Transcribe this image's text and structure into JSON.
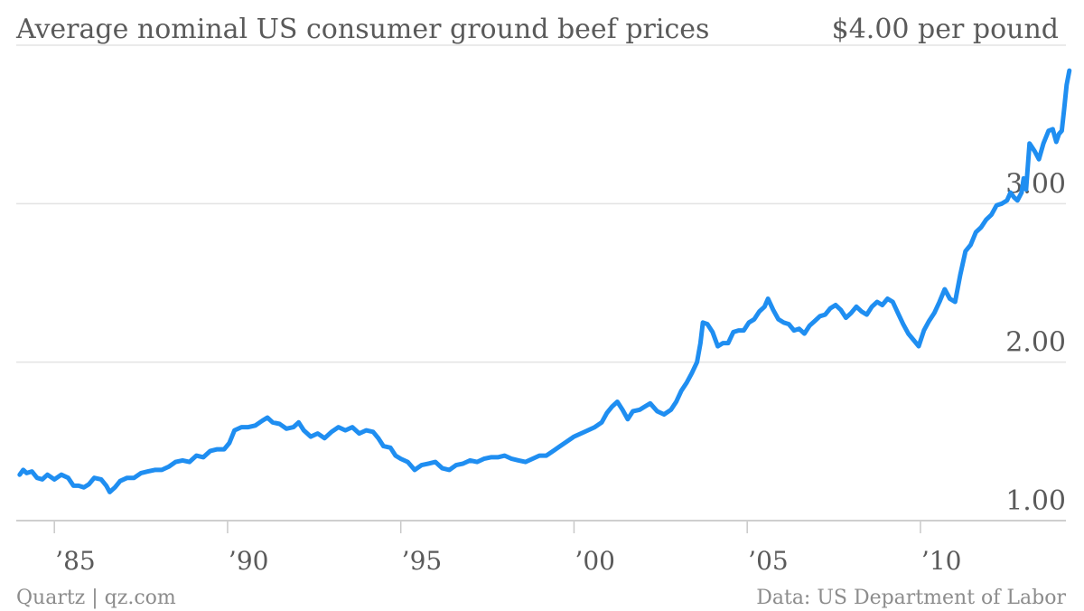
{
  "chart_data": {
    "type": "line",
    "title": "Average nominal US consumer ground beef prices",
    "unit_label": "$4.00 per pound",
    "xlabel": "",
    "ylabel": "",
    "xlim": [
      1983.9,
      2014.2
    ],
    "ylim": [
      0.95,
      4.0
    ],
    "grid": true,
    "line_color": "#1f8ef1",
    "y_ticks": [
      {
        "value": 1.0,
        "label": "1.00"
      },
      {
        "value": 2.0,
        "label": "2.00"
      },
      {
        "value": 3.0,
        "label": "3.00"
      },
      {
        "value": 4.0,
        "label": "$4.00 per pound"
      }
    ],
    "x_ticks": [
      {
        "value": 1985,
        "label": "’85"
      },
      {
        "value": 1990,
        "label": "’90"
      },
      {
        "value": 1995,
        "label": "’95"
      },
      {
        "value": 2000,
        "label": "’00"
      },
      {
        "value": 2005,
        "label": "’05"
      },
      {
        "value": 2010,
        "label": "’10"
      }
    ],
    "series": [
      {
        "values": [
          [
            1984.0,
            1.29
          ],
          [
            1984.1,
            1.32
          ],
          [
            1984.2,
            1.3
          ],
          [
            1984.35,
            1.31
          ],
          [
            1984.5,
            1.27
          ],
          [
            1984.65,
            1.26
          ],
          [
            1984.8,
            1.29
          ],
          [
            1985.0,
            1.26
          ],
          [
            1985.2,
            1.29
          ],
          [
            1985.4,
            1.27
          ],
          [
            1985.55,
            1.22
          ],
          [
            1985.7,
            1.22
          ],
          [
            1985.85,
            1.21
          ],
          [
            1986.0,
            1.23
          ],
          [
            1986.15,
            1.27
          ],
          [
            1986.35,
            1.26
          ],
          [
            1986.5,
            1.22
          ],
          [
            1986.6,
            1.18
          ],
          [
            1986.75,
            1.21
          ],
          [
            1986.9,
            1.25
          ],
          [
            1987.1,
            1.27
          ],
          [
            1987.3,
            1.27
          ],
          [
            1987.5,
            1.3
          ],
          [
            1987.7,
            1.31
          ],
          [
            1987.9,
            1.32
          ],
          [
            1988.1,
            1.32
          ],
          [
            1988.3,
            1.34
          ],
          [
            1988.5,
            1.37
          ],
          [
            1988.7,
            1.38
          ],
          [
            1988.9,
            1.37
          ],
          [
            1989.1,
            1.41
          ],
          [
            1989.3,
            1.4
          ],
          [
            1989.5,
            1.44
          ],
          [
            1989.7,
            1.45
          ],
          [
            1989.9,
            1.45
          ],
          [
            1990.05,
            1.49
          ],
          [
            1990.2,
            1.57
          ],
          [
            1990.4,
            1.59
          ],
          [
            1990.6,
            1.59
          ],
          [
            1990.8,
            1.6
          ],
          [
            1991.0,
            1.63
          ],
          [
            1991.15,
            1.65
          ],
          [
            1991.3,
            1.62
          ],
          [
            1991.5,
            1.61
          ],
          [
            1991.7,
            1.58
          ],
          [
            1991.9,
            1.59
          ],
          [
            1992.05,
            1.62
          ],
          [
            1992.2,
            1.57
          ],
          [
            1992.4,
            1.53
          ],
          [
            1992.6,
            1.55
          ],
          [
            1992.8,
            1.52
          ],
          [
            1993.0,
            1.56
          ],
          [
            1993.2,
            1.59
          ],
          [
            1993.4,
            1.57
          ],
          [
            1993.6,
            1.59
          ],
          [
            1993.8,
            1.55
          ],
          [
            1994.0,
            1.57
          ],
          [
            1994.2,
            1.56
          ],
          [
            1994.35,
            1.52
          ],
          [
            1994.5,
            1.47
          ],
          [
            1994.7,
            1.46
          ],
          [
            1994.85,
            1.41
          ],
          [
            1995.0,
            1.39
          ],
          [
            1995.2,
            1.37
          ],
          [
            1995.4,
            1.32
          ],
          [
            1995.6,
            1.35
          ],
          [
            1995.8,
            1.36
          ],
          [
            1996.0,
            1.37
          ],
          [
            1996.2,
            1.33
          ],
          [
            1996.4,
            1.32
          ],
          [
            1996.6,
            1.35
          ],
          [
            1996.8,
            1.36
          ],
          [
            1997.0,
            1.38
          ],
          [
            1997.2,
            1.37
          ],
          [
            1997.4,
            1.39
          ],
          [
            1997.6,
            1.4
          ],
          [
            1997.8,
            1.4
          ],
          [
            1998.0,
            1.41
          ],
          [
            1998.2,
            1.39
          ],
          [
            1998.4,
            1.38
          ],
          [
            1998.6,
            1.37
          ],
          [
            1998.8,
            1.39
          ],
          [
            1999.0,
            1.41
          ],
          [
            1999.2,
            1.41
          ],
          [
            1999.4,
            1.44
          ],
          [
            1999.6,
            1.47
          ],
          [
            1999.8,
            1.5
          ],
          [
            2000.0,
            1.53
          ],
          [
            2000.2,
            1.55
          ],
          [
            2000.4,
            1.57
          ],
          [
            2000.6,
            1.59
          ],
          [
            2000.8,
            1.62
          ],
          [
            2000.95,
            1.68
          ],
          [
            2001.1,
            1.72
          ],
          [
            2001.25,
            1.75
          ],
          [
            2001.4,
            1.7
          ],
          [
            2001.55,
            1.64
          ],
          [
            2001.7,
            1.69
          ],
          [
            2001.9,
            1.7
          ],
          [
            2002.05,
            1.72
          ],
          [
            2002.2,
            1.74
          ],
          [
            2002.4,
            1.69
          ],
          [
            2002.6,
            1.67
          ],
          [
            2002.8,
            1.7
          ],
          [
            2002.95,
            1.75
          ],
          [
            2003.1,
            1.82
          ],
          [
            2003.25,
            1.87
          ],
          [
            2003.4,
            1.93
          ],
          [
            2003.55,
            2.0
          ],
          [
            2003.65,
            2.12
          ],
          [
            2003.72,
            2.25
          ],
          [
            2003.85,
            2.24
          ],
          [
            2004.0,
            2.19
          ],
          [
            2004.15,
            2.1
          ],
          [
            2004.3,
            2.12
          ],
          [
            2004.45,
            2.12
          ],
          [
            2004.6,
            2.19
          ],
          [
            2004.75,
            2.2
          ],
          [
            2004.9,
            2.2
          ],
          [
            2005.05,
            2.25
          ],
          [
            2005.2,
            2.27
          ],
          [
            2005.35,
            2.32
          ],
          [
            2005.5,
            2.35
          ],
          [
            2005.6,
            2.4
          ],
          [
            2005.75,
            2.33
          ],
          [
            2005.9,
            2.27
          ],
          [
            2006.05,
            2.25
          ],
          [
            2006.2,
            2.24
          ],
          [
            2006.35,
            2.2
          ],
          [
            2006.5,
            2.21
          ],
          [
            2006.65,
            2.18
          ],
          [
            2006.8,
            2.23
          ],
          [
            2006.95,
            2.26
          ],
          [
            2007.1,
            2.29
          ],
          [
            2007.25,
            2.3
          ],
          [
            2007.4,
            2.34
          ],
          [
            2007.55,
            2.36
          ],
          [
            2007.7,
            2.33
          ],
          [
            2007.85,
            2.28
          ],
          [
            2008.0,
            2.31
          ],
          [
            2008.15,
            2.35
          ],
          [
            2008.3,
            2.32
          ],
          [
            2008.45,
            2.3
          ],
          [
            2008.6,
            2.35
          ],
          [
            2008.75,
            2.38
          ],
          [
            2008.9,
            2.36
          ],
          [
            2009.05,
            2.4
          ],
          [
            2009.2,
            2.38
          ],
          [
            2009.35,
            2.31
          ],
          [
            2009.5,
            2.24
          ],
          [
            2009.65,
            2.18
          ],
          [
            2009.8,
            2.14
          ],
          [
            2009.95,
            2.1
          ],
          [
            2010.1,
            2.2
          ],
          [
            2010.25,
            2.26
          ],
          [
            2010.4,
            2.31
          ],
          [
            2010.55,
            2.38
          ],
          [
            2010.7,
            2.46
          ],
          [
            2010.85,
            2.4
          ],
          [
            2011.0,
            2.38
          ],
          [
            2011.15,
            2.55
          ],
          [
            2011.3,
            2.7
          ],
          [
            2011.45,
            2.74
          ],
          [
            2011.6,
            2.82
          ],
          [
            2011.75,
            2.85
          ],
          [
            2011.9,
            2.9
          ],
          [
            2012.05,
            2.93
          ],
          [
            2012.2,
            2.99
          ],
          [
            2012.35,
            3.0
          ],
          [
            2012.5,
            3.02
          ],
          [
            2012.6,
            3.07
          ],
          [
            2012.7,
            3.04
          ],
          [
            2012.8,
            3.02
          ],
          [
            2012.92,
            3.07
          ],
          [
            2012.98,
            3.16
          ],
          [
            2013.05,
            3.09
          ],
          [
            2013.15,
            3.38
          ],
          [
            2013.3,
            3.33
          ],
          [
            2013.42,
            3.28
          ],
          [
            2013.55,
            3.38
          ],
          [
            2013.7,
            3.46
          ],
          [
            2013.82,
            3.47
          ],
          [
            2013.92,
            3.39
          ],
          [
            2014.0,
            3.44
          ],
          [
            2014.08,
            3.46
          ],
          [
            2014.15,
            3.6
          ],
          [
            2014.22,
            3.75
          ],
          [
            2014.3,
            3.84
          ]
        ]
      }
    ]
  },
  "footer": {
    "source_left": "Quartz | qz.com",
    "source_right": "Data: US Department of Labor"
  }
}
